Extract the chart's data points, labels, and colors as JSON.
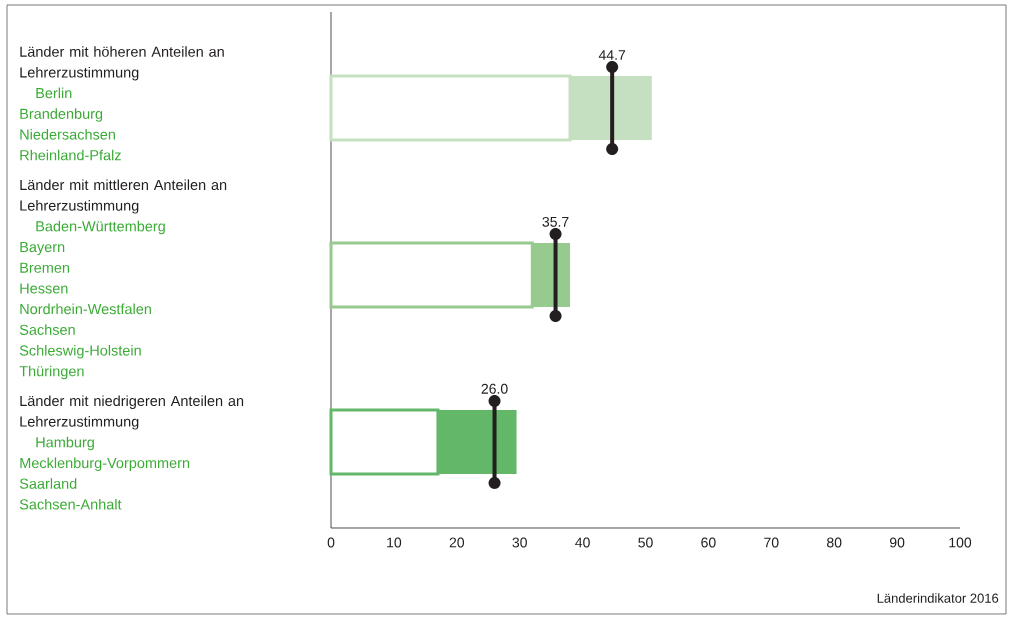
{
  "chart_data": {
    "type": "bar",
    "orientation": "horizontal",
    "stacked": true,
    "categories": [
      "Länder mit höheren Anteilen an Lehrerzustimmung",
      "Länder mit mittleren Anteilen an Lehrerzustimmung",
      "Länder mit niedrigeren Anteilen an Lehrerzustimmung"
    ],
    "series": [
      {
        "color": "#ffffff",
        "values": [
          38,
          32,
          17
        ]
      },
      {
        "colors": [
          "#c5e0c0",
          "#97ca8f",
          "#62b768"
        ],
        "values": [
          13,
          6,
          12.5
        ]
      },
      {
        "type": "scatter",
        "color": "#231f20",
        "values": [
          44.7,
          35.7,
          26.0
        ],
        "value_labels": [
          "44.7",
          "35.7",
          "26.0"
        ]
      }
    ],
    "xlim": [
      0,
      100
    ],
    "xticks": [
      0,
      10,
      20,
      30,
      40,
      50,
      60,
      70,
      80,
      90,
      100
    ],
    "grid": false,
    "annotations": [
      "Berlin\nBrandenburg\nNiedersachsen\nRheinland-Pfalz",
      "Baden-Württemberg\nBayern\nBremen\nHessen\nNordrhein-Westfalen\nSachsen\nSchleswig-Holstein\nThüringen",
      "Hamburg\nMecklenburg-Vorpommern\nSaarland\nSachsen-Anhalt",
      "Länderindikator 2016"
    ]
  }
}
